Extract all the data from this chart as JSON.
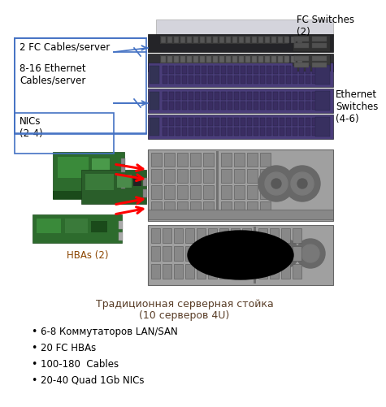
{
  "background_color": "#ffffff",
  "fc_switches_label": "FC Switches\n(2)",
  "ethernet_switches_label": "Ethernet\nSwitches\n(4-6)",
  "label_2fc": "2 FC Cables/server",
  "label_8_16": "8-16 Ethernet\nCables/server",
  "label_nics": "NICs\n(2-4)",
  "label_hbas": "HBAs (2)",
  "caption_line1": "Традиционная серверная стойка",
  "caption_line2": "(10 серверов 4U)",
  "bullet1": "6-8 Коммутаторов LAN/SAN",
  "bullet2": "20 FC HBAs",
  "bullet3": "100-180  Cables",
  "bullet4": "20-40 Quad 1Gb NICs",
  "arrow_color": "#4472C4",
  "red_arrow_color": "#FF0000",
  "box_color": "#4472C4",
  "fc_switch_color1": "#c0c0c8",
  "fc_switch_color2": "#a8a8b0",
  "fc_switch_top": "#d8d8e0",
  "eth_switch_color": "#4a3d7a",
  "eth_port_color": "#3a2d6a",
  "server_body": "#909090",
  "server_bay": "#787878",
  "server_dark": "#606060",
  "caption_color": "#5a3e28"
}
